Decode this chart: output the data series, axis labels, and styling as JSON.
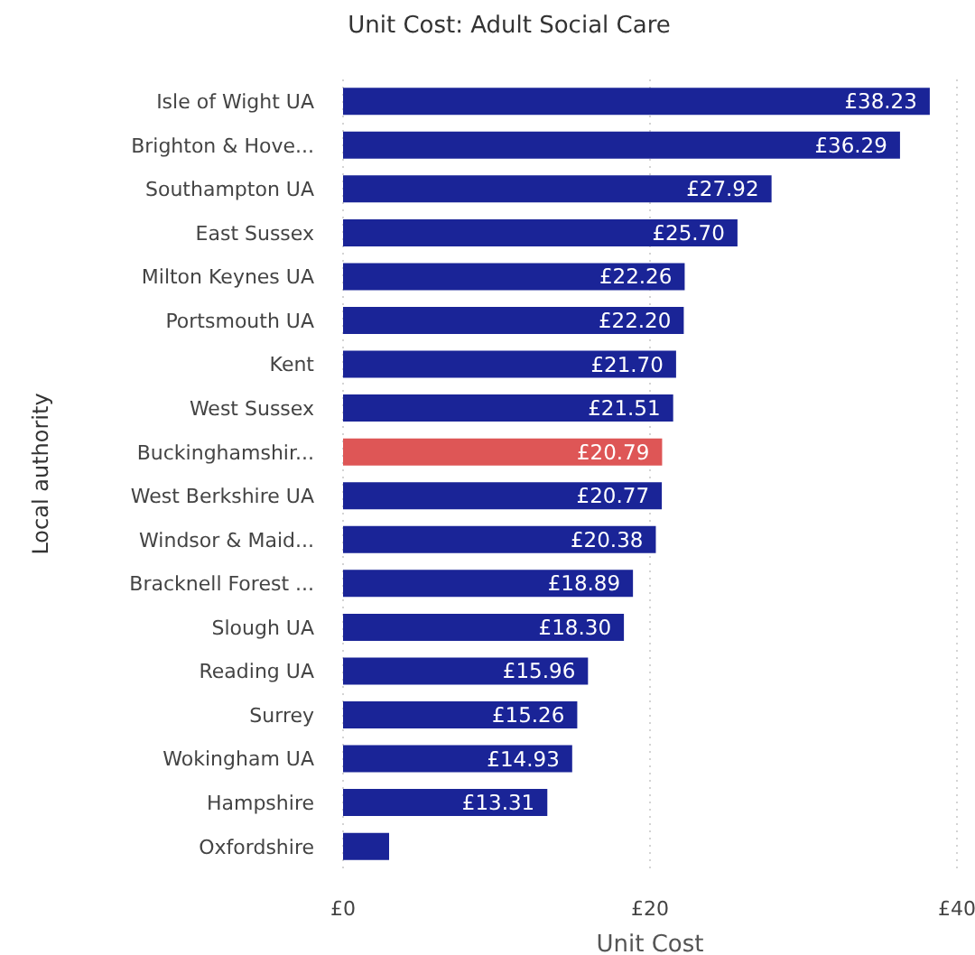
{
  "chart_data": {
    "type": "bar",
    "orientation": "horizontal",
    "title": "Unit Cost: Adult Social Care",
    "xlabel": "Unit Cost",
    "ylabel": "Local authority",
    "categories": [
      "Isle of Wight UA",
      "Brighton & Hove...",
      "Southampton UA",
      "East Sussex",
      "Milton Keynes UA",
      "Portsmouth UA",
      "Kent",
      "West Sussex",
      "Buckinghamshir...",
      "West Berkshire UA",
      "Windsor & Maid...",
      "Bracknell Forest ...",
      "Slough UA",
      "Reading UA",
      "Surrey",
      "Wokingham UA",
      "Hampshire",
      "Oxfordshire"
    ],
    "values": [
      38.23,
      36.29,
      27.92,
      25.7,
      22.26,
      22.2,
      21.7,
      21.51,
      20.79,
      20.77,
      20.38,
      18.89,
      18.3,
      15.96,
      15.26,
      14.93,
      13.31,
      3
    ],
    "value_labels": [
      "£38.23",
      "£36.29",
      "£27.92",
      "£25.70",
      "£22.26",
      "£22.20",
      "£21.70",
      "£21.51",
      "£20.79",
      "£20.77",
      "£20.38",
      "£18.89",
      "£18.30",
      "£15.96",
      "£15.26",
      "£14.93",
      "£13.31",
      null
    ],
    "colors": [
      "#1a2497",
      "#1a2497",
      "#1a2497",
      "#1a2497",
      "#1a2497",
      "#1a2497",
      "#1a2497",
      "#1a2497",
      "#de5656",
      "#1a2497",
      "#1a2497",
      "#1a2497",
      "#1a2497",
      "#1a2497",
      "#1a2497",
      "#1a2497",
      "#1a2497",
      "#1a2497"
    ],
    "xlim": [
      0,
      40
    ],
    "xticks": [
      {
        "value": 0,
        "label": "£0"
      },
      {
        "value": 20,
        "label": "£20"
      },
      {
        "value": 40,
        "label": "£40"
      }
    ],
    "grid": "x"
  }
}
